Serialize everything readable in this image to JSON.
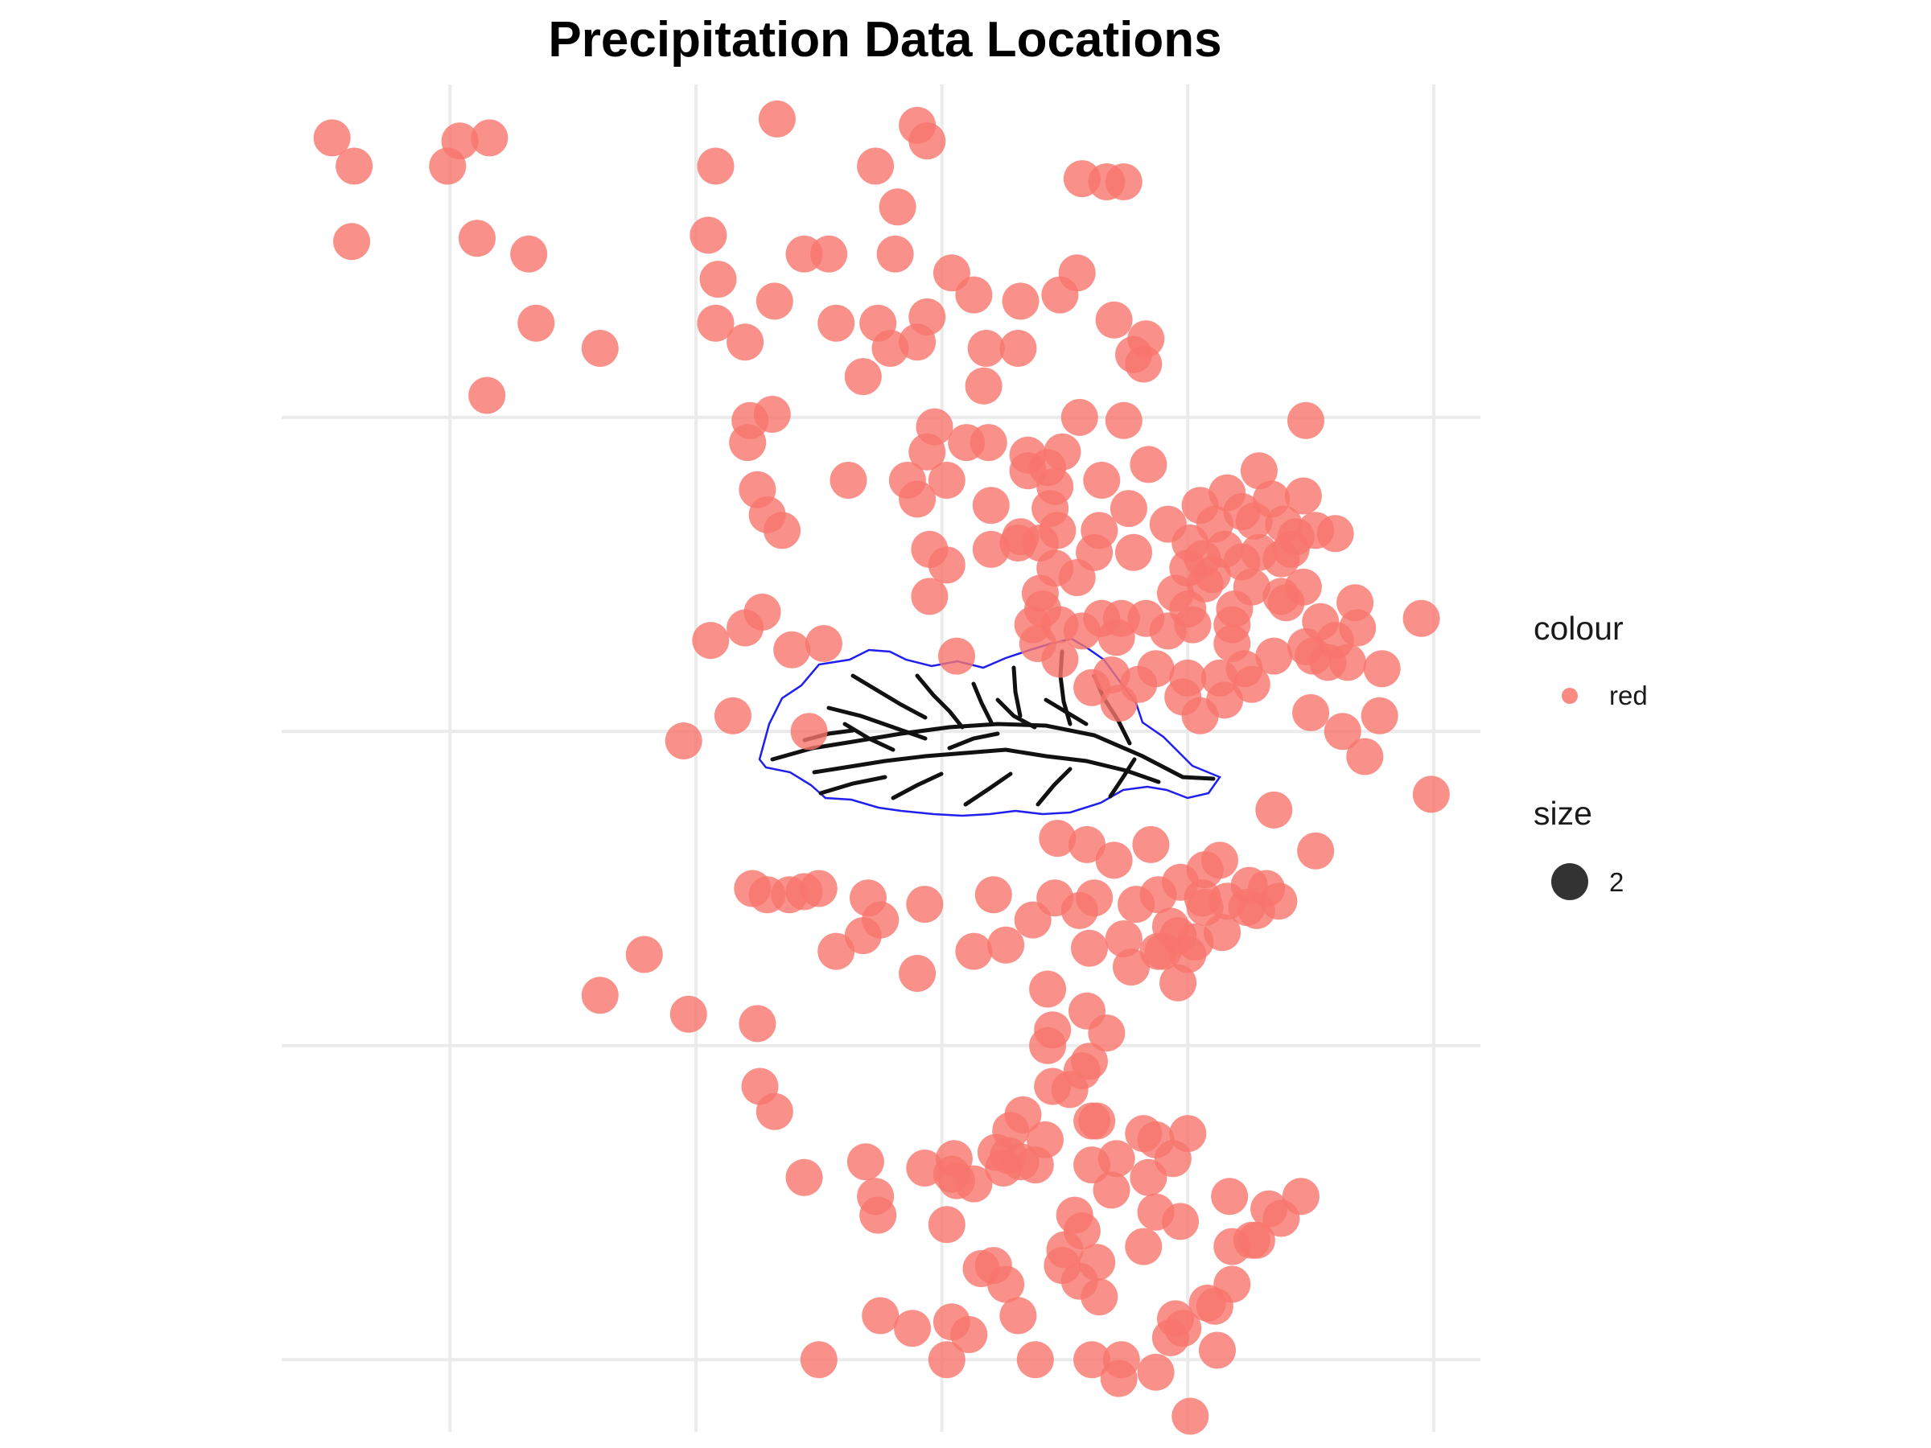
{
  "chart_data": {
    "type": "scatter",
    "title": "Precipitation Data Locations",
    "xlabel": "",
    "ylabel": "",
    "grid": true,
    "axis_ticks_shown": false,
    "x_gridlines": [
      0,
      1,
      2,
      3,
      4
    ],
    "y_gridlines": [
      0,
      1,
      2,
      3
    ],
    "xlim": [
      -0.685,
      4.19
    ],
    "ylim": [
      -0.23,
      4.06
    ],
    "point_color": "#F8766D",
    "point_alpha": 0.8,
    "legend_position": "right",
    "legend": [
      {
        "title": "colour",
        "entries": [
          {
            "label": "red",
            "color": "#F8766D"
          }
        ]
      },
      {
        "title": "size",
        "entries": [
          {
            "label": "2",
            "color": "#000000"
          }
        ]
      }
    ],
    "points": [
      [
        -0.48,
        3.89
      ],
      [
        -0.39,
        3.8
      ],
      [
        0.04,
        3.88
      ],
      [
        0.16,
        3.89
      ],
      [
        -0.01,
        3.8
      ],
      [
        -0.4,
        3.56
      ],
      [
        0.11,
        3.57
      ],
      [
        0.32,
        3.52
      ],
      [
        0.35,
        3.3
      ],
      [
        0.61,
        3.22
      ],
      [
        0.15,
        3.07
      ],
      [
        1.33,
        3.95
      ],
      [
        1.9,
        3.93
      ],
      [
        1.94,
        3.88
      ],
      [
        1.08,
        3.8
      ],
      [
        1.73,
        3.8
      ],
      [
        2.57,
        3.76
      ],
      [
        2.67,
        3.75
      ],
      [
        2.74,
        3.75
      ],
      [
        1.82,
        3.67
      ],
      [
        1.05,
        3.58
      ],
      [
        1.44,
        3.52
      ],
      [
        1.54,
        3.52
      ],
      [
        1.81,
        3.52
      ],
      [
        1.09,
        3.44
      ],
      [
        2.04,
        3.46
      ],
      [
        2.55,
        3.46
      ],
      [
        1.32,
        3.37
      ],
      [
        2.13,
        3.39
      ],
      [
        2.32,
        3.37
      ],
      [
        2.48,
        3.39
      ],
      [
        1.08,
        3.3
      ],
      [
        1.57,
        3.3
      ],
      [
        1.74,
        3.3
      ],
      [
        1.94,
        3.32
      ],
      [
        2.7,
        3.31
      ],
      [
        2.83,
        3.25
      ],
      [
        1.2,
        3.24
      ],
      [
        1.79,
        3.22
      ],
      [
        1.9,
        3.24
      ],
      [
        2.18,
        3.22
      ],
      [
        2.31,
        3.22
      ],
      [
        2.78,
        3.2
      ],
      [
        2.82,
        3.17
      ],
      [
        1.68,
        3.13
      ],
      [
        2.17,
        3.1
      ],
      [
        1.31,
        3.01
      ],
      [
        1.22,
        2.99
      ],
      [
        1.97,
        2.97
      ],
      [
        2.56,
        3.0
      ],
      [
        2.74,
        2.99
      ],
      [
        3.48,
        2.99
      ],
      [
        1.21,
        2.92
      ],
      [
        2.1,
        2.92
      ],
      [
        2.19,
        2.92
      ],
      [
        1.94,
        2.89
      ],
      [
        2.35,
        2.88
      ],
      [
        2.49,
        2.89
      ],
      [
        2.84,
        2.85
      ],
      [
        1.62,
        2.8
      ],
      [
        1.86,
        2.8
      ],
      [
        2.02,
        2.8
      ],
      [
        2.35,
        2.83
      ],
      [
        2.43,
        2.84
      ],
      [
        3.29,
        2.83
      ],
      [
        1.25,
        2.77
      ],
      [
        2.46,
        2.78
      ],
      [
        2.65,
        2.8
      ],
      [
        1.9,
        2.74
      ],
      [
        2.2,
        2.72
      ],
      [
        2.44,
        2.71
      ],
      [
        3.16,
        2.76
      ],
      [
        3.34,
        2.74
      ],
      [
        3.47,
        2.75
      ],
      [
        1.29,
        2.69
      ],
      [
        2.76,
        2.71
      ],
      [
        3.05,
        2.72
      ],
      [
        3.22,
        2.7
      ],
      [
        1.35,
        2.64
      ],
      [
        2.92,
        2.66
      ],
      [
        3.27,
        2.67
      ],
      [
        2.32,
        2.62
      ],
      [
        2.47,
        2.64
      ],
      [
        2.64,
        2.64
      ],
      [
        3.11,
        2.66
      ],
      [
        3.39,
        2.66
      ],
      [
        3.52,
        2.64
      ],
      [
        3.6,
        2.63
      ],
      [
        3.44,
        2.62
      ],
      [
        1.95,
        2.58
      ],
      [
        2.2,
        2.58
      ],
      [
        2.31,
        2.6
      ],
      [
        2.4,
        2.6
      ],
      [
        2.62,
        2.57
      ],
      [
        2.78,
        2.57
      ],
      [
        3.01,
        2.6
      ],
      [
        3.15,
        2.58
      ],
      [
        3.29,
        2.57
      ],
      [
        3.42,
        2.58
      ],
      [
        2.02,
        2.53
      ],
      [
        2.46,
        2.52
      ],
      [
        3.06,
        2.55
      ],
      [
        3.22,
        2.54
      ],
      [
        3.38,
        2.55
      ],
      [
        2.55,
        2.49
      ],
      [
        3.0,
        2.52
      ],
      [
        3.1,
        2.5
      ],
      [
        1.95,
        2.43
      ],
      [
        2.4,
        2.44
      ],
      [
        2.95,
        2.44
      ],
      [
        3.07,
        2.47
      ],
      [
        3.26,
        2.46
      ],
      [
        3.47,
        2.46
      ],
      [
        3.38,
        2.43
      ],
      [
        2.41,
        2.39
      ],
      [
        2.65,
        2.36
      ],
      [
        3.0,
        2.39
      ],
      [
        3.19,
        2.39
      ],
      [
        3.4,
        2.41
      ],
      [
        3.68,
        2.41
      ],
      [
        3.95,
        2.36
      ],
      [
        1.27,
        2.38
      ],
      [
        2.37,
        2.34
      ],
      [
        2.48,
        2.34
      ],
      [
        2.57,
        2.32
      ],
      [
        2.73,
        2.36
      ],
      [
        2.83,
        2.36
      ],
      [
        3.02,
        2.34
      ],
      [
        3.18,
        2.34
      ],
      [
        3.54,
        2.35
      ],
      [
        3.69,
        2.33
      ],
      [
        1.2,
        2.33
      ],
      [
        1.06,
        2.29
      ],
      [
        1.52,
        2.28
      ],
      [
        2.39,
        2.28
      ],
      [
        2.71,
        2.3
      ],
      [
        2.92,
        2.32
      ],
      [
        3.18,
        2.28
      ],
      [
        3.48,
        2.27
      ],
      [
        3.6,
        2.29
      ],
      [
        1.39,
        2.26
      ],
      [
        2.06,
        2.24
      ],
      [
        2.48,
        2.23
      ],
      [
        3.35,
        2.24
      ],
      [
        3.51,
        2.24
      ],
      [
        3.57,
        2.22
      ],
      [
        3.65,
        2.22
      ],
      [
        3.79,
        2.2
      ],
      [
        2.69,
        2.18
      ],
      [
        2.87,
        2.2
      ],
      [
        3.0,
        2.17
      ],
      [
        3.13,
        2.17
      ],
      [
        3.23,
        2.2
      ],
      [
        2.61,
        2.14
      ],
      [
        2.8,
        2.15
      ],
      [
        2.98,
        2.11
      ],
      [
        3.15,
        2.1
      ],
      [
        3.26,
        2.15
      ],
      [
        3.5,
        2.06
      ],
      [
        3.78,
        2.05
      ],
      [
        2.72,
        2.09
      ],
      [
        3.05,
        2.05
      ],
      [
        3.63,
        2.0
      ],
      [
        0.95,
        1.97
      ],
      [
        1.15,
        2.05
      ],
      [
        1.46,
        2.0
      ],
      [
        3.72,
        1.92
      ],
      [
        3.99,
        1.8
      ],
      [
        3.35,
        1.75
      ],
      [
        3.52,
        1.62
      ],
      [
        1.23,
        1.5
      ],
      [
        1.29,
        1.48
      ],
      [
        1.44,
        1.49
      ],
      [
        1.5,
        1.5
      ],
      [
        2.47,
        1.66
      ],
      [
        2.59,
        1.64
      ],
      [
        2.85,
        1.64
      ],
      [
        2.7,
        1.59
      ],
      [
        3.13,
        1.59
      ],
      [
        3.07,
        1.56
      ],
      [
        3.06,
        1.47
      ],
      [
        3.37,
        1.46
      ],
      [
        3.25,
        1.51
      ],
      [
        1.7,
        1.47
      ],
      [
        1.75,
        1.4
      ],
      [
        1.93,
        1.45
      ],
      [
        2.21,
        1.48
      ],
      [
        2.37,
        1.4
      ],
      [
        2.46,
        1.47
      ],
      [
        2.56,
        1.43
      ],
      [
        2.62,
        1.47
      ],
      [
        2.88,
        1.48
      ],
      [
        3.16,
        1.46
      ],
      [
        3.32,
        1.5
      ],
      [
        1.38,
        1.48
      ],
      [
        1.68,
        1.35
      ],
      [
        2.93,
        1.38
      ],
      [
        1.57,
        1.3
      ],
      [
        2.13,
        1.3
      ],
      [
        2.26,
        1.32
      ],
      [
        2.6,
        1.31
      ],
      [
        2.74,
        1.34
      ],
      [
        3.03,
        1.33
      ],
      [
        3.14,
        1.36
      ],
      [
        3.24,
        1.44
      ],
      [
        3.28,
        1.43
      ],
      [
        3.07,
        1.44
      ],
      [
        2.79,
        1.45
      ],
      [
        2.97,
        1.52
      ],
      [
        0.97,
        1.1
      ],
      [
        1.25,
        1.07
      ],
      [
        1.26,
        0.87
      ],
      [
        1.32,
        0.79
      ],
      [
        0.79,
        1.29
      ],
      [
        0.61,
        1.16
      ],
      [
        1.9,
        1.23
      ],
      [
        2.43,
        1.18
      ],
      [
        2.45,
        1.05
      ],
      [
        2.43,
        1.0
      ],
      [
        2.6,
        0.95
      ],
      [
        2.67,
        1.04
      ],
      [
        2.77,
        1.25
      ],
      [
        2.88,
        1.3
      ],
      [
        2.96,
        1.35
      ],
      [
        2.9,
        1.3
      ],
      [
        3.0,
        1.29
      ],
      [
        2.96,
        1.2
      ],
      [
        2.59,
        1.11
      ],
      [
        2.57,
        0.92
      ],
      [
        2.28,
        0.73
      ],
      [
        2.33,
        0.78
      ],
      [
        2.45,
        0.87
      ],
      [
        2.52,
        0.86
      ],
      [
        2.63,
        0.76
      ],
      [
        1.93,
        0.61
      ],
      [
        2.05,
        0.64
      ],
      [
        2.13,
        0.56
      ],
      [
        2.27,
        0.65
      ],
      [
        2.42,
        0.7
      ],
      [
        2.38,
        0.62
      ],
      [
        2.61,
        0.62
      ],
      [
        2.61,
        0.76
      ],
      [
        2.82,
        0.72
      ],
      [
        2.87,
        0.7
      ],
      [
        1.69,
        0.63
      ],
      [
        2.22,
        0.66
      ],
      [
        2.32,
        0.63
      ],
      [
        2.06,
        0.57
      ],
      [
        2.04,
        0.59
      ],
      [
        2.25,
        0.61
      ],
      [
        1.44,
        0.58
      ],
      [
        1.73,
        0.52
      ],
      [
        1.74,
        0.46
      ],
      [
        2.02,
        0.43
      ],
      [
        2.16,
        0.29
      ],
      [
        2.57,
        0.41
      ],
      [
        2.63,
        0.31
      ],
      [
        2.97,
        0.44
      ],
      [
        2.87,
        0.47
      ],
      [
        2.82,
        0.36
      ],
      [
        2.21,
        0.3
      ],
      [
        2.26,
        0.24
      ],
      [
        2.49,
        0.3
      ],
      [
        2.56,
        0.25
      ],
      [
        2.31,
        0.14
      ],
      [
        2.04,
        0.12
      ],
      [
        2.11,
        0.08
      ],
      [
        1.88,
        0.1
      ],
      [
        1.75,
        0.14
      ],
      [
        1.5,
        0.0
      ],
      [
        2.02,
        0.0
      ],
      [
        2.38,
        0.0
      ],
      [
        2.61,
        0.0
      ],
      [
        2.73,
        0.0
      ],
      [
        2.98,
        0.1
      ],
      [
        3.08,
        0.18
      ],
      [
        3.12,
        0.03
      ],
      [
        3.01,
        -0.18
      ],
      [
        2.72,
        -0.06
      ],
      [
        2.87,
        -0.04
      ],
      [
        2.93,
        0.07
      ],
      [
        3.11,
        0.17
      ],
      [
        3.18,
        0.24
      ],
      [
        3.18,
        0.36
      ],
      [
        2.95,
        0.13
      ],
      [
        2.64,
        0.2
      ],
      [
        2.5,
        0.35
      ],
      [
        2.54,
        0.46
      ],
      [
        2.69,
        0.54
      ],
      [
        2.84,
        0.58
      ],
      [
        2.71,
        0.64
      ],
      [
        2.94,
        0.64
      ],
      [
        3.0,
        0.72
      ],
      [
        3.17,
        0.52
      ],
      [
        3.28,
        0.38
      ],
      [
        3.38,
        0.45
      ],
      [
        3.46,
        0.52
      ],
      [
        3.26,
        0.38
      ],
      [
        3.33,
        0.48
      ]
    ]
  }
}
